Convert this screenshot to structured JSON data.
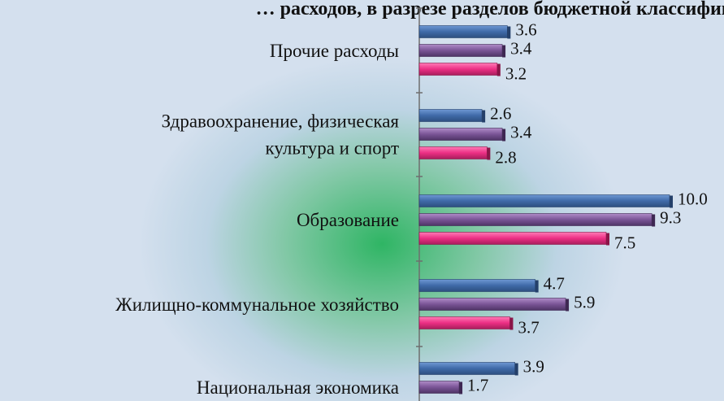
{
  "chart_data": {
    "type": "bar",
    "orientation": "horizontal",
    "title": "… расходов, в разрезе разделов бюджетной классификации, в процентах к итогу",
    "categories": [
      "Прочие расходы",
      "Здравоохранение, физическая культура и спорт",
      "Образование",
      "Жилищно-коммунальное хозяйство",
      "Национальная экономика"
    ],
    "category_lines": [
      [
        "Прочие расходы"
      ],
      [
        "Здравоохранение, физическая",
        "культура и спорт"
      ],
      [
        "Образование"
      ],
      [
        "Жилищно-коммунальное хозяйство"
      ],
      [
        "Национальная экономика"
      ]
    ],
    "series": [
      {
        "values": [
          3.6,
          2.6,
          10.0,
          4.7,
          3.9
        ],
        "color": "#4a76b8"
      },
      {
        "values": [
          3.4,
          3.4,
          9.3,
          5.9,
          1.7
        ],
        "color": "#8a64a8"
      },
      {
        "values": [
          3.2,
          2.8,
          7.5,
          3.7,
          null
        ],
        "color": "#ee3a8c"
      }
    ],
    "value_labels": {
      "0": [
        "3.6",
        "3.4",
        "3.2"
      ],
      "1": [
        "2.6",
        "3.4",
        "2.8"
      ],
      "2": [
        "10.0",
        "9.3",
        "7.5"
      ],
      "3": [
        "4.7",
        "5.9",
        "3.7"
      ],
      "4": [
        "3.9",
        "1.7",
        ""
      ]
    },
    "xlim": [
      0,
      10
    ],
    "grid": false,
    "legend": "none"
  }
}
